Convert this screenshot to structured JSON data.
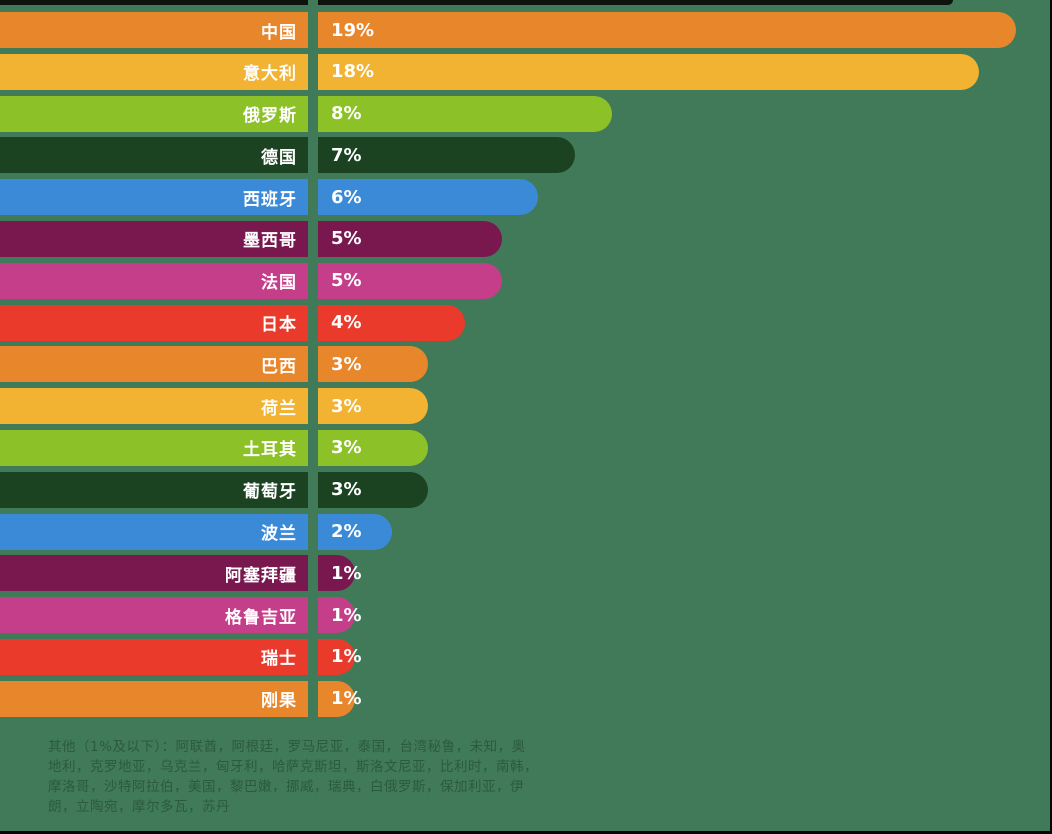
{
  "palette": {
    "orange": "#e8862c",
    "amber": "#f2b232",
    "yellowgreen": "#8cc227",
    "darkgreen": "#1b4322",
    "blue": "#3a8ad8",
    "plum": "#79184f",
    "magenta": "#c43e8a",
    "red": "#e93a2b",
    "background": "#417a58",
    "bar_text": "#ffffff",
    "footer_text": "#2b5a3e",
    "crop_strip": "#0e130d"
  },
  "chart_data": {
    "type": "bar",
    "orientation": "horizontal",
    "unit": "%",
    "xlim": [
      0,
      19
    ],
    "grid": false,
    "legend": false,
    "categories": [
      "中国",
      "意大利",
      "俄罗斯",
      "德国",
      "西班牙",
      "墨西哥",
      "法国",
      "日本",
      "巴西",
      "荷兰",
      "土耳其",
      "葡萄牙",
      "波兰",
      "阿塞拜疆",
      "格鲁吉亚",
      "瑞士",
      "刚果"
    ],
    "values": [
      19,
      18,
      8,
      7,
      6,
      5,
      5,
      4,
      3,
      3,
      3,
      3,
      2,
      1,
      1,
      1,
      1
    ],
    "value_labels": [
      "19%",
      "18%",
      "8%",
      "7%",
      "6%",
      "5%",
      "5%",
      "4%",
      "3%",
      "3%",
      "3%",
      "3%",
      "2%",
      "1%",
      "1%",
      "1%",
      "1%"
    ],
    "bar_colors": [
      "orange",
      "amber",
      "yellowgreen",
      "darkgreen",
      "blue",
      "plum",
      "magenta",
      "red",
      "orange",
      "amber",
      "yellowgreen",
      "darkgreen",
      "blue",
      "plum",
      "magenta",
      "red",
      "orange"
    ]
  },
  "footer": {
    "lines": [
      "其他（1%及以下）：阿联酋，阿根廷，罗马尼亚，泰国，台湾秘鲁，未知，奥",
      "地利，克罗地亚，乌克兰，匈牙利，哈萨克斯坦，斯洛文尼亚，比利时，南韩，",
      "摩洛哥，沙特阿拉伯，美国，黎巴嫩，挪威，瑞典，白俄罗斯，保加利亚，伊",
      "朗，立陶宛，摩尔多瓦，苏丹"
    ]
  }
}
